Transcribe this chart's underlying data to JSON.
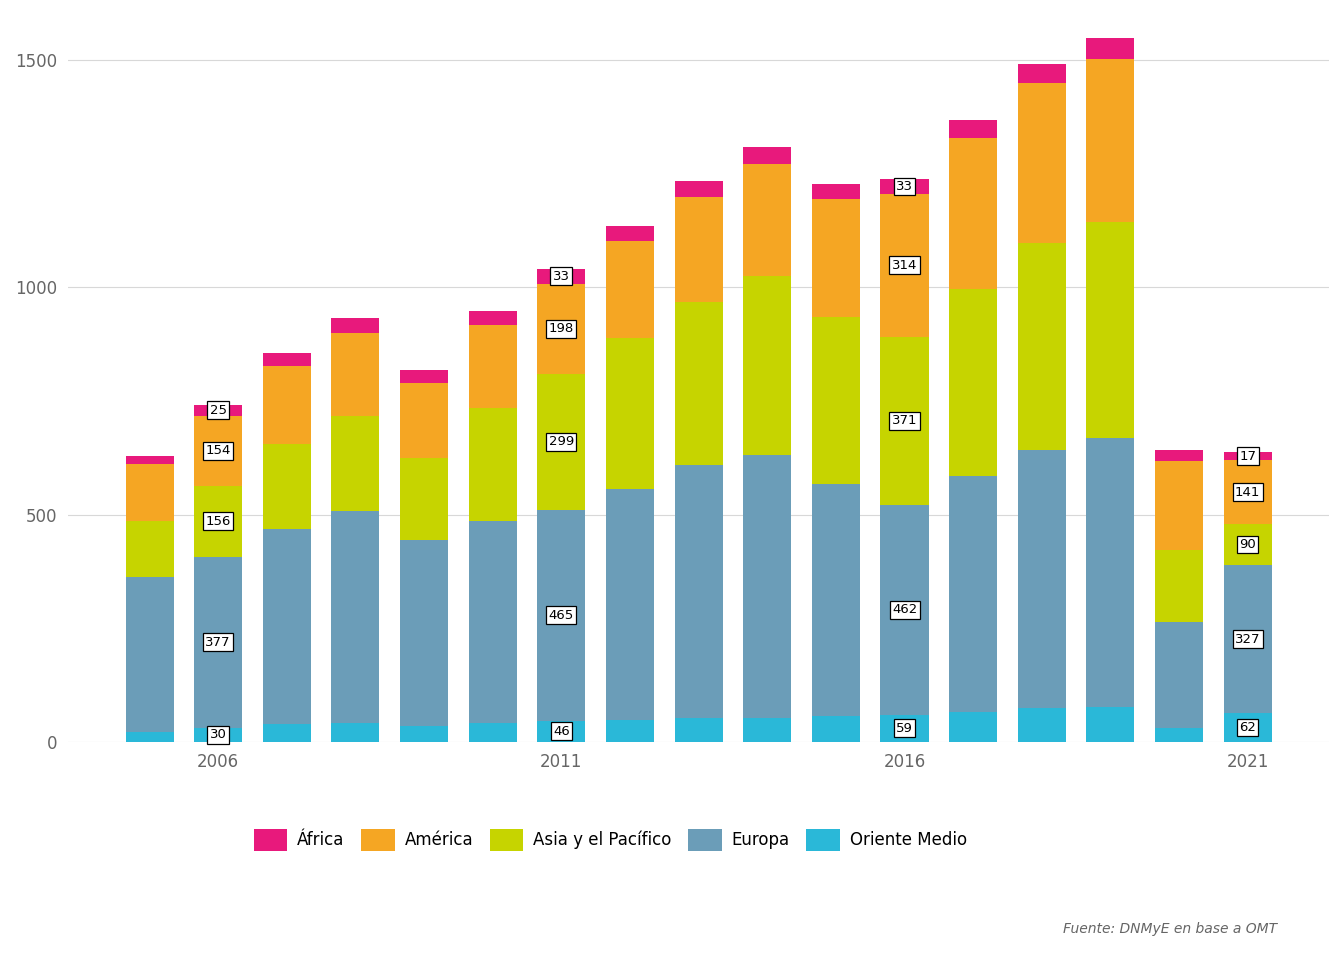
{
  "years": [
    2005,
    2006,
    2007,
    2008,
    2009,
    2010,
    2011,
    2012,
    2013,
    2014,
    2015,
    2016,
    2017,
    2018,
    2019,
    2020,
    2021
  ],
  "africa": [
    18,
    25,
    29,
    32,
    29,
    31,
    33,
    34,
    35,
    38,
    33,
    33,
    38,
    42,
    45,
    26,
    17
  ],
  "america": [
    125,
    154,
    172,
    184,
    165,
    183,
    198,
    214,
    231,
    247,
    258,
    314,
    333,
    352,
    360,
    196,
    141
  ],
  "asia": [
    124,
    156,
    187,
    208,
    181,
    248,
    299,
    331,
    358,
    393,
    369,
    371,
    413,
    455,
    475,
    157,
    90
  ],
  "europa": [
    340,
    377,
    430,
    468,
    410,
    446,
    465,
    509,
    558,
    579,
    510,
    462,
    519,
    570,
    593,
    235,
    327
  ],
  "oriente_medio": [
    22,
    30,
    38,
    40,
    34,
    40,
    46,
    48,
    52,
    53,
    57,
    59,
    65,
    73,
    76,
    29,
    62
  ],
  "colors": {
    "africa": "#e8197c",
    "america": "#f5a623",
    "asia": "#c6d400",
    "europa": "#6b9db8",
    "oriente_medio": "#2ab8d8"
  },
  "legend_labels": [
    "África",
    "América",
    "Asia y el Pacífico",
    "Europa",
    "Oriente Medio"
  ],
  "source_text": "Fuente: DNMyE en base a OMT",
  "ylim": [
    0,
    1600
  ],
  "yticks": [
    0,
    500,
    1000,
    1500
  ],
  "background_color": "#ffffff",
  "grid_color": "#d8d8d8",
  "label_years": [
    2006,
    2011,
    2016,
    2021
  ],
  "tick_years": [
    2006,
    2011,
    2016,
    2021
  ]
}
